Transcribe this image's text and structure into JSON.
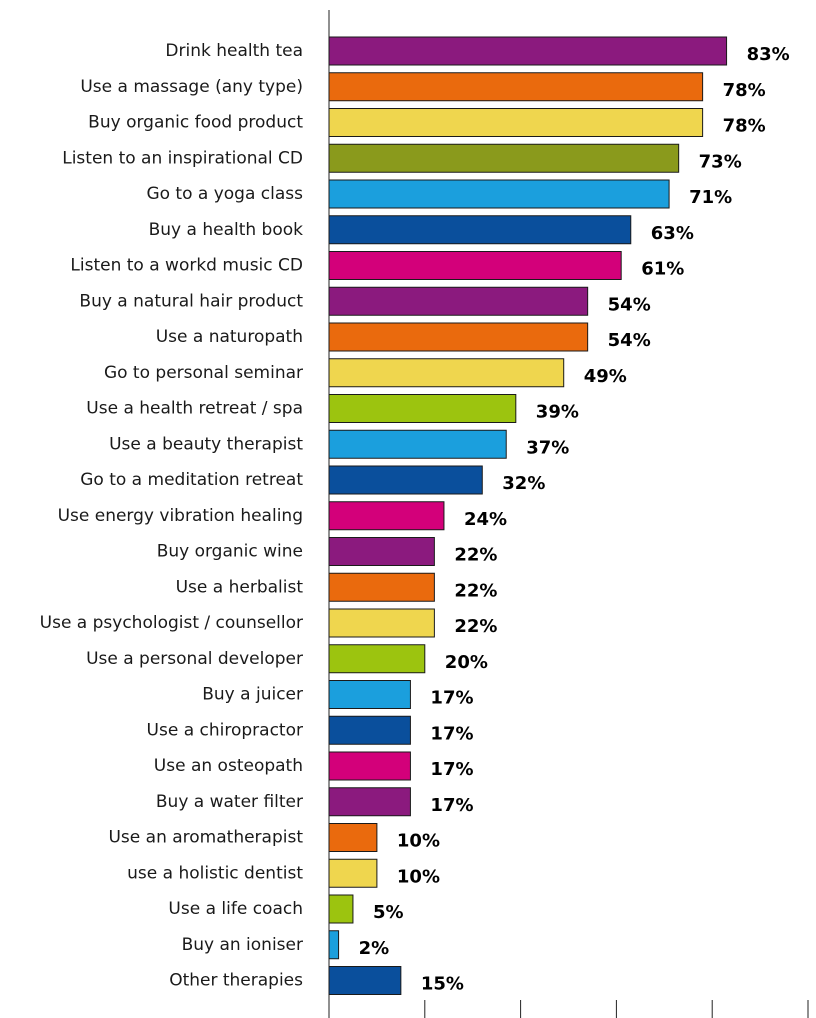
{
  "chart_data": {
    "type": "bar",
    "orientation": "horizontal",
    "categories": [
      "Drink health tea",
      "Use a massage (any type)",
      "Buy organic food product",
      "Listen to an inspirational CD",
      "Go to a yoga class",
      "Buy a health book",
      "Listen to a workd music CD",
      "Buy a natural hair product",
      "Use a naturopath",
      "Go to personal seminar",
      "Use a health retreat / spa",
      "Use a beauty therapist",
      "Go to a meditation retreat",
      "Use energy vibration healing",
      "Buy organic wine",
      "Use a herbalist",
      "Use a psychologist / counsellor",
      "Use a personal developer",
      "Buy a juicer",
      "Use a chiropractor",
      "Use an osteopath",
      "Buy a water filter",
      "Use an aromatherapist",
      "use a holistic dentist",
      "Use a life coach",
      "Buy an ioniser",
      "Other therapies"
    ],
    "values": [
      83,
      78,
      78,
      73,
      71,
      63,
      61,
      54,
      54,
      49,
      39,
      37,
      32,
      24,
      22,
      22,
      22,
      20,
      17,
      17,
      17,
      17,
      10,
      10,
      5,
      2,
      15
    ],
    "value_labels": [
      "83%",
      "78%",
      "78%",
      "73%",
      "71%",
      "63%",
      "61%",
      "54%",
      "54%",
      "49%",
      "39%",
      "37%",
      "32%",
      "24%",
      "22%",
      "22%",
      "22%",
      "20%",
      "17%",
      "17%",
      "17%",
      "17%",
      "10%",
      "10%",
      "5%",
      "2%",
      "15%"
    ],
    "colors": [
      "#8b1a7e",
      "#ea6a0d",
      "#efd64e",
      "#8a9a1c",
      "#1b9fdd",
      "#0a4f9c",
      "#d3007a",
      "#8b1a7e",
      "#ea6a0d",
      "#efd64e",
      "#9cc40f",
      "#1b9fdd",
      "#0a4f9c",
      "#d3007a",
      "#8b1a7e",
      "#ea6a0d",
      "#efd64e",
      "#9cc40f",
      "#1b9fdd",
      "#0a4f9c",
      "#d3007a",
      "#8b1a7e",
      "#ea6a0d",
      "#efd64e",
      "#9cc40f",
      "#1b9fdd",
      "#0a4f9c"
    ],
    "xlim": [
      0,
      100
    ],
    "grid": false,
    "legend": "none",
    "title": "",
    "xlabel": "",
    "ylabel": ""
  }
}
